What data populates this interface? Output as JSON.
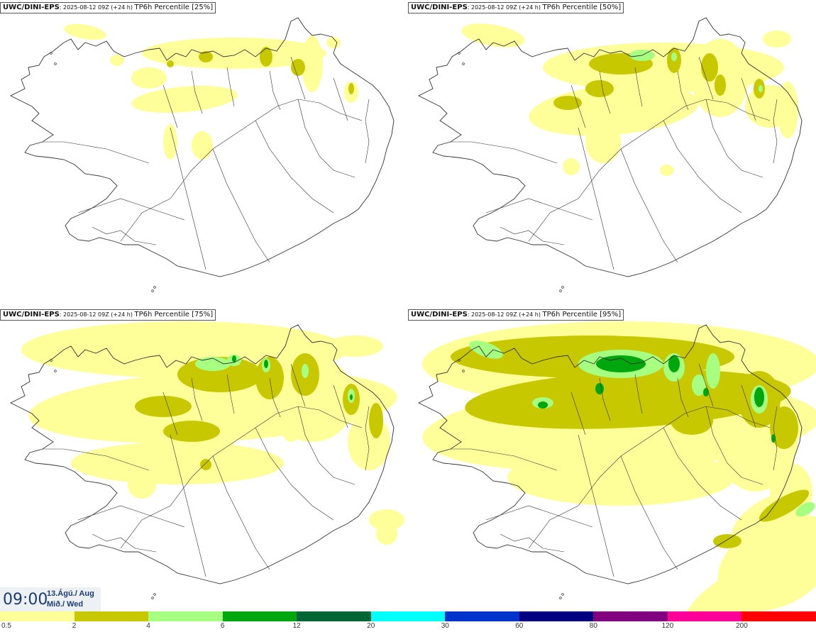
{
  "panels": [
    {
      "source": "UWC/DINI-EPS",
      "run": ": 2025-08-12 09Z (+24 h) ",
      "variable": "TP6h Percentile [25%]"
    },
    {
      "source": "UWC/DINI-EPS",
      "run": ": 2025-08-12 09Z (+24 h) ",
      "variable": "TP6h Percentile [50%]"
    },
    {
      "source": "UWC/DINI-EPS",
      "run": ": 2025-08-12 09Z (+24 h) ",
      "variable": "TP6h Percentile [75%]"
    },
    {
      "source": "UWC/DINI-EPS",
      "run": ": 2025-08-12 09Z (+24 h) ",
      "variable": "TP6h Percentile [95%]"
    }
  ],
  "valid_time": {
    "time": "09:00",
    "date": "13.Ágú./ Aug",
    "weekday": "Mið./ Wed"
  },
  "legend": {
    "ticks": [
      "0.5",
      "2",
      "4",
      "6",
      "12",
      "20",
      "30",
      "60",
      "80",
      "120",
      "200"
    ],
    "colors": [
      "#ffff99",
      "#c8c800",
      "#a6ff80",
      "#00a60d",
      "#006633",
      "#00ffff",
      "#0033cc",
      "#000080",
      "#800080",
      "#ff0099",
      "#ff0000"
    ]
  },
  "map_colors": {
    "land_line": "#333333",
    "light": "#ffff99",
    "mid": "#c8c800",
    "high": "#a6ff80",
    "peak": "#00a60d"
  }
}
